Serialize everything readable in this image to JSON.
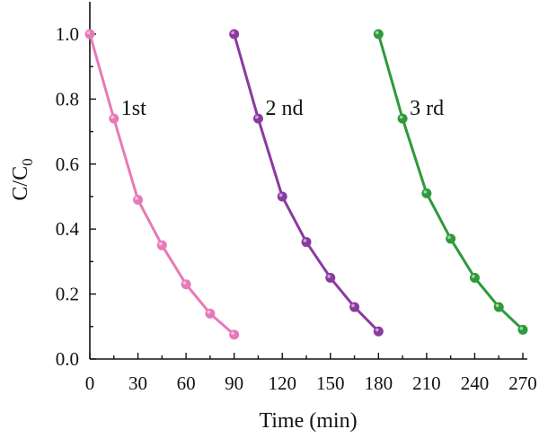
{
  "chart_data": {
    "type": "line",
    "title": "",
    "xlabel": "Time (min)",
    "ylabel_main": "C/C",
    "ylabel_sub": "0",
    "xlim": [
      0,
      270
    ],
    "ylim": [
      0,
      1.0
    ],
    "xticks": [
      0,
      30,
      60,
      90,
      120,
      150,
      180,
      210,
      240,
      270
    ],
    "yticks": [
      "0.0",
      "0.2",
      "0.4",
      "0.6",
      "0.8",
      "1.0"
    ],
    "grid": false,
    "series": [
      {
        "name": "1st",
        "color": "#e879b8",
        "x": [
          0,
          15,
          30,
          45,
          60,
          75,
          90
        ],
        "y": [
          1.0,
          0.74,
          0.49,
          0.35,
          0.23,
          0.14,
          0.075
        ]
      },
      {
        "name": "2 nd",
        "color": "#8b3aa0",
        "x": [
          90,
          105,
          120,
          135,
          150,
          165,
          180
        ],
        "y": [
          1.0,
          0.74,
          0.5,
          0.36,
          0.25,
          0.16,
          0.085
        ]
      },
      {
        "name": "3 rd",
        "color": "#2e9a3a",
        "x": [
          180,
          195,
          210,
          225,
          240,
          255,
          270
        ],
        "y": [
          1.0,
          0.74,
          0.51,
          0.37,
          0.25,
          0.16,
          0.09
        ]
      }
    ]
  }
}
